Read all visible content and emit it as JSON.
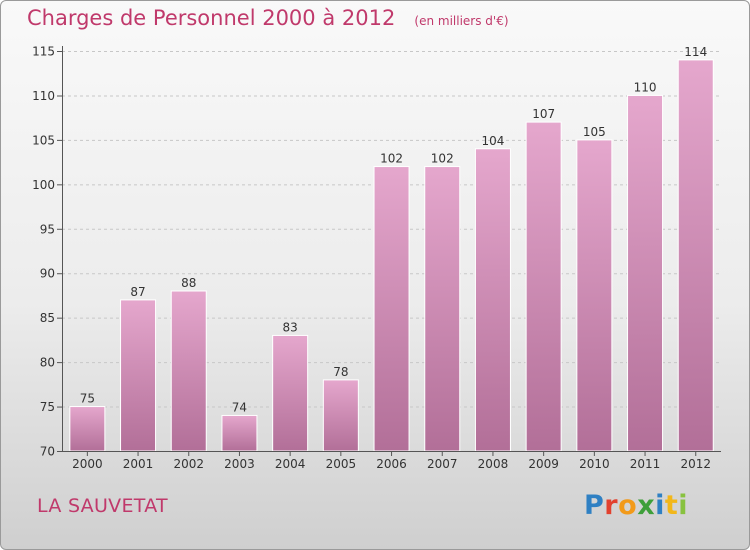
{
  "chart_data": {
    "type": "bar",
    "title": "Charges de Personnel 2000 à 2012",
    "subtitle": "(en milliers d'€)",
    "categories": [
      "2000",
      "2001",
      "2002",
      "2003",
      "2004",
      "2005",
      "2006",
      "2007",
      "2008",
      "2009",
      "2010",
      "2011",
      "2012"
    ],
    "values": [
      75,
      87,
      88,
      74,
      83,
      78,
      102,
      102,
      104,
      107,
      105,
      110,
      114
    ],
    "ylim": [
      70,
      115
    ],
    "yticks": [
      70,
      75,
      80,
      85,
      90,
      95,
      100,
      105,
      110,
      115
    ],
    "grid": true,
    "colors": {
      "bar_top": "#e5a7cd",
      "bar_bottom": "#b26f98",
      "accent": "#c0396b"
    }
  },
  "footer": {
    "place": "LA SAUVETAT",
    "logo_letters": [
      "P",
      "r",
      "o",
      "x",
      "i",
      "t",
      "i"
    ],
    "logo_colors": [
      "#2f80c3",
      "#e2412e",
      "#f29a1a",
      "#3e9f3a",
      "#2f80c3",
      "#f2b71a",
      "#88c23f"
    ]
  }
}
